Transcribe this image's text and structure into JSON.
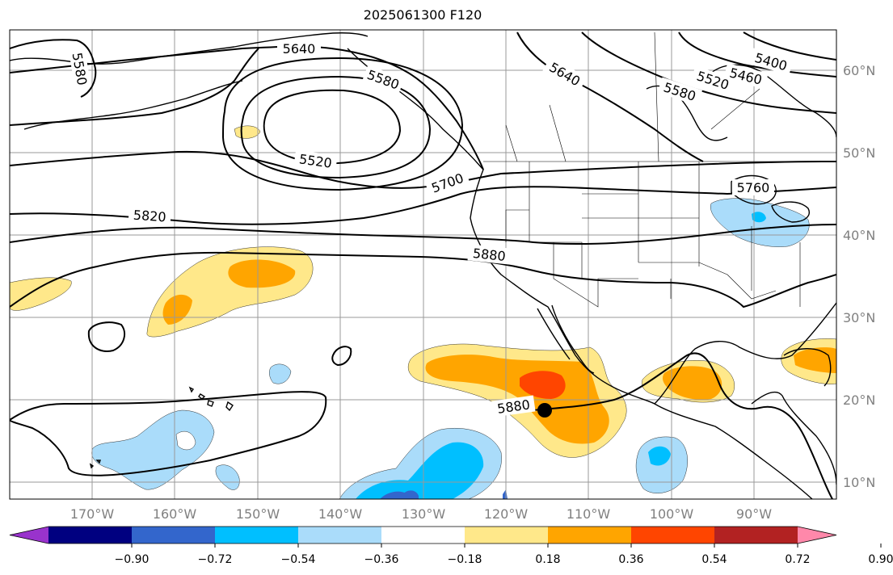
{
  "title": "2025061300 F120",
  "map": {
    "projection": "equirectangular",
    "lon_range": [
      -180,
      -80
    ],
    "lat_range": [
      7,
      64
    ],
    "lon_labels": [
      "170°W",
      "160°W",
      "150°W",
      "140°W",
      "130°W",
      "120°W",
      "110°W",
      "100°W",
      "90°W"
    ],
    "lat_labels": [
      "60°N",
      "50°N",
      "40°N",
      "30°N",
      "20°N",
      "10°N"
    ],
    "gridlines": true,
    "coastlines": true,
    "state_borders": true
  },
  "contours": {
    "variable": "geopotential height",
    "color": "#000000",
    "labels": [
      "5640",
      "5580",
      "5580",
      "5520",
      "5700",
      "5820",
      "5880",
      "5880",
      "5640",
      "5580",
      "5520",
      "5460",
      "5400",
      "5760"
    ]
  },
  "filled_anomaly": {
    "levels": [
      "−0.90",
      "−0.72",
      "−0.54",
      "−0.36",
      "−0.18",
      "0.18",
      "0.36",
      "0.54",
      "0.72",
      "0.90"
    ],
    "colors": [
      "#9933cc",
      "#000080",
      "#3366cc",
      "#00bfff",
      "#aadcfa",
      "#ffffff",
      "#ffe88a",
      "#ffa500",
      "#ff4500",
      "#b22222",
      "#ff88aa"
    ]
  },
  "marker": {
    "name": "cyclone center",
    "lat": 18.8,
    "lon": -115.2,
    "color": "#000000"
  },
  "colorbar": {
    "orientation": "horizontal",
    "extend": "both"
  }
}
